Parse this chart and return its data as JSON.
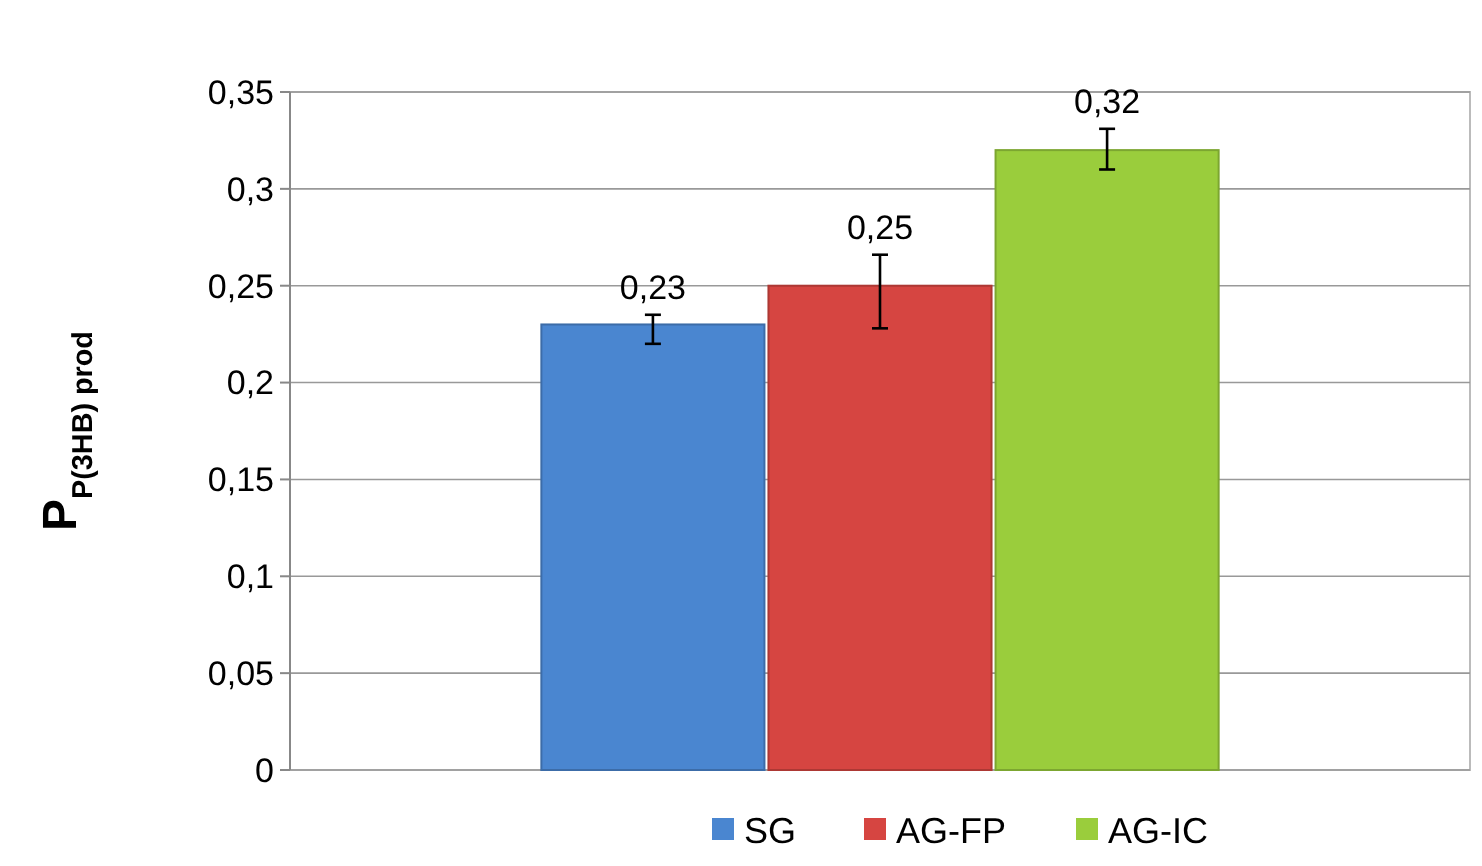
{
  "chart_data": {
    "type": "bar",
    "ylabel": "P$_{P(3HB) prod}$",
    "categories": [
      null
    ],
    "series": [
      {
        "name": "SG",
        "color": "#4a86d0",
        "values": [
          0.23
        ],
        "errors": [
          [
            0.22,
            0.235
          ]
        ],
        "value_labels": [
          "0,23"
        ]
      },
      {
        "name": "AG-FP",
        "color": "#d64541",
        "values": [
          0.25
        ],
        "errors": [
          [
            0.228,
            0.266
          ]
        ],
        "value_labels": [
          "0,25"
        ]
      },
      {
        "name": "AG-IC",
        "color": "#9acd3c",
        "values": [
          0.32
        ],
        "errors": [
          [
            0.31,
            0.331
          ]
        ],
        "value_labels": [
          "0,32"
        ]
      }
    ],
    "ylim": [
      0,
      0.35
    ],
    "yticks": [
      0,
      {
        "value": 0.05,
        "label": "0,05"
      },
      {
        "value": 0.1,
        "label": "0,1"
      },
      {
        "value": 0.15,
        "label": "0,15"
      },
      {
        "value": 0.2,
        "label": "0,2"
      },
      {
        "value": 0.25,
        "label": "0,25"
      },
      {
        "value": 0.3,
        "label": "0,3"
      },
      {
        "value": 0.35,
        "label": "0,35"
      }
    ],
    "grid": "y",
    "legend": "bottom"
  }
}
